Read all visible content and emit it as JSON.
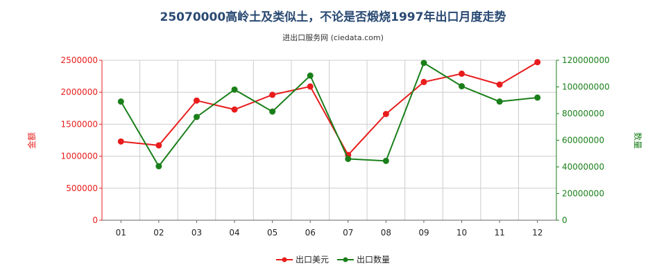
{
  "header": {
    "title": "25070000高岭土及类似土，不论是否煅烧1997年出口月度走势",
    "subtitle": "进出口服务网 (ciedata.com)"
  },
  "colors": {
    "amount": "#e81c1c",
    "quantity": "#1a7f1a",
    "title": "#2a4a73"
  },
  "legend": {
    "amount_label": "出口美元",
    "quantity_label": "出口数量",
    "position": "bottom-center"
  },
  "chart_data": {
    "type": "line",
    "categories": [
      "01",
      "02",
      "03",
      "04",
      "05",
      "06",
      "07",
      "08",
      "09",
      "10",
      "11",
      "12"
    ],
    "series": [
      {
        "name": "出口美元",
        "axis": "left",
        "values": [
          1230000,
          1170000,
          1870000,
          1730000,
          1960000,
          2090000,
          1020000,
          1660000,
          2160000,
          2290000,
          2120000,
          2470000
        ]
      },
      {
        "name": "出口数量",
        "axis": "right",
        "values": [
          89000000,
          40500000,
          77500000,
          98000000,
          81500000,
          108500000,
          46000000,
          44500000,
          118000000,
          100500000,
          89000000,
          92000000
        ]
      }
    ],
    "y_left": {
      "label": "金额",
      "ylim": [
        0,
        2500000
      ],
      "ticks": [
        "0",
        "500000",
        "1000000",
        "1500000",
        "2000000",
        "2500000"
      ]
    },
    "y_right": {
      "label": "数量",
      "ylim": [
        0,
        120000000
      ],
      "ticks": [
        "0",
        "20000000",
        "40000000",
        "60000000",
        "80000000",
        "100000000",
        "120000000"
      ]
    },
    "grid": true
  }
}
